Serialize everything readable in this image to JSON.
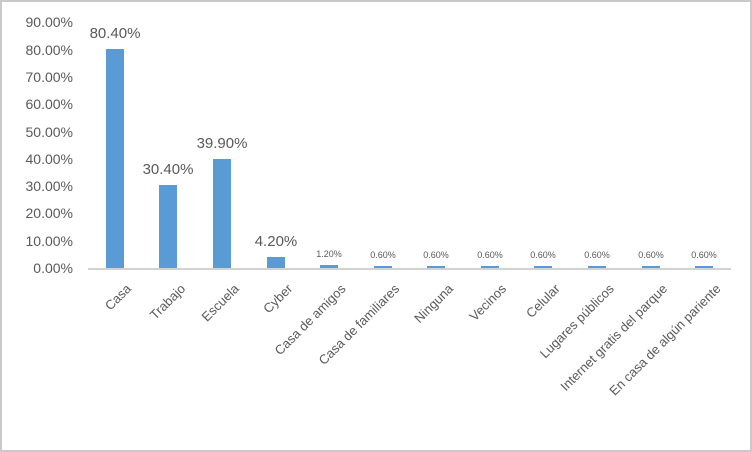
{
  "chart_data": {
    "type": "bar",
    "title": "",
    "xlabel": "",
    "ylabel": "",
    "grid": false,
    "legend": false,
    "categories": [
      "Casa",
      "Trabajo",
      "Escuela",
      "Cyber",
      "Casa de amigos",
      "Casa de familiares",
      "Ninguna",
      "Vecinos",
      "Celular",
      "Lugares públicos",
      "Internet gratis del parque",
      "En casa de algún pariente"
    ],
    "values": [
      80.4,
      30.4,
      39.9,
      4.2,
      1.2,
      0.6,
      0.6,
      0.6,
      0.6,
      0.6,
      0.6,
      0.6
    ],
    "value_labels": [
      "80.40%",
      "30.40%",
      "39.90%",
      "4.20%",
      "1.20%",
      "0.60%",
      "0.60%",
      "0.60%",
      "0.60%",
      "0.60%",
      "0.60%",
      "0.60%"
    ],
    "label_emphasis": [
      true,
      true,
      true,
      true,
      false,
      false,
      false,
      false,
      false,
      false,
      false,
      false
    ],
    "y_axis": {
      "min": 0,
      "max": 90,
      "step": 10,
      "tick_labels": [
        "0.00%",
        "10.00%",
        "20.00%",
        "30.00%",
        "40.00%",
        "50.00%",
        "60.00%",
        "70.00%",
        "80.00%",
        "90.00%"
      ]
    },
    "colors": {
      "bar": "#5B9BD5",
      "text": "#595959",
      "axis_line": "#d2d2d2",
      "frame_border": "#c9c9c9"
    }
  }
}
